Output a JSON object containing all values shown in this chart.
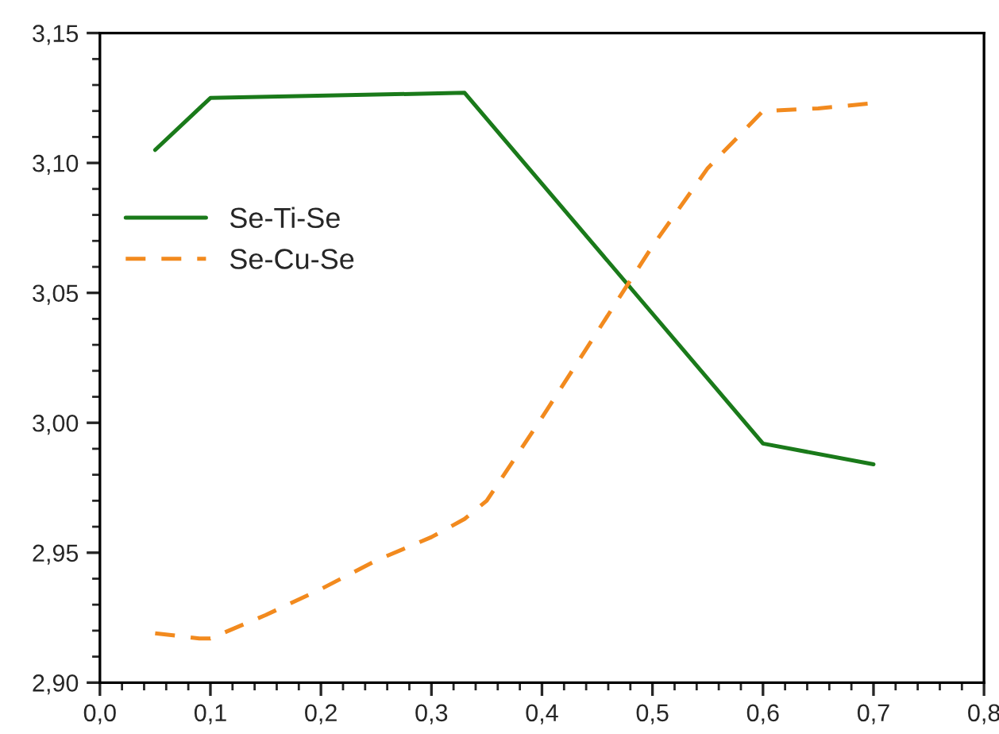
{
  "chart_data": {
    "type": "line",
    "xlim": [
      0,
      0.8
    ],
    "ylim": [
      2.9,
      3.15
    ],
    "xticks": [
      {
        "value": 0,
        "label": "0,0"
      },
      {
        "value": 0.1,
        "label": "0,1"
      },
      {
        "value": 0.2,
        "label": "0,2"
      },
      {
        "value": 0.3,
        "label": "0,3"
      },
      {
        "value": 0.4,
        "label": "0,4"
      },
      {
        "value": 0.5,
        "label": "0,5"
      },
      {
        "value": 0.6,
        "label": "0,6"
      },
      {
        "value": 0.7,
        "label": "0,7"
      },
      {
        "value": 0.8,
        "label": "0,8"
      }
    ],
    "yticks": [
      {
        "value": 2.9,
        "label": "2,90"
      },
      {
        "value": 2.95,
        "label": "2,95"
      },
      {
        "value": 3.0,
        "label": "3,00"
      },
      {
        "value": 3.05,
        "label": "3,05"
      },
      {
        "value": 3.1,
        "label": "3,10"
      },
      {
        "value": 3.15,
        "label": "3,15"
      }
    ],
    "grid": false,
    "legend": "left",
    "series": [
      {
        "name": "Se-Ti-Se",
        "color": "#1a7a1a",
        "line_style": "solid",
        "x": [
          0.05,
          0.1,
          0.33,
          0.6,
          0.7
        ],
        "values": [
          3.105,
          3.125,
          3.127,
          2.992,
          2.984
        ]
      },
      {
        "name": "Se-Cu-Se",
        "color": "#f28a1e",
        "line_style": "dashed",
        "x": [
          0.05,
          0.07,
          0.09,
          0.1,
          0.15,
          0.2,
          0.25,
          0.3,
          0.33,
          0.35,
          0.4,
          0.45,
          0.5,
          0.55,
          0.6,
          0.65,
          0.7
        ],
        "values": [
          2.919,
          2.918,
          2.917,
          2.917,
          2.926,
          2.936,
          2.947,
          2.956,
          2.963,
          2.97,
          3.002,
          3.035,
          3.068,
          3.098,
          3.12,
          3.121,
          3.123
        ]
      }
    ]
  }
}
